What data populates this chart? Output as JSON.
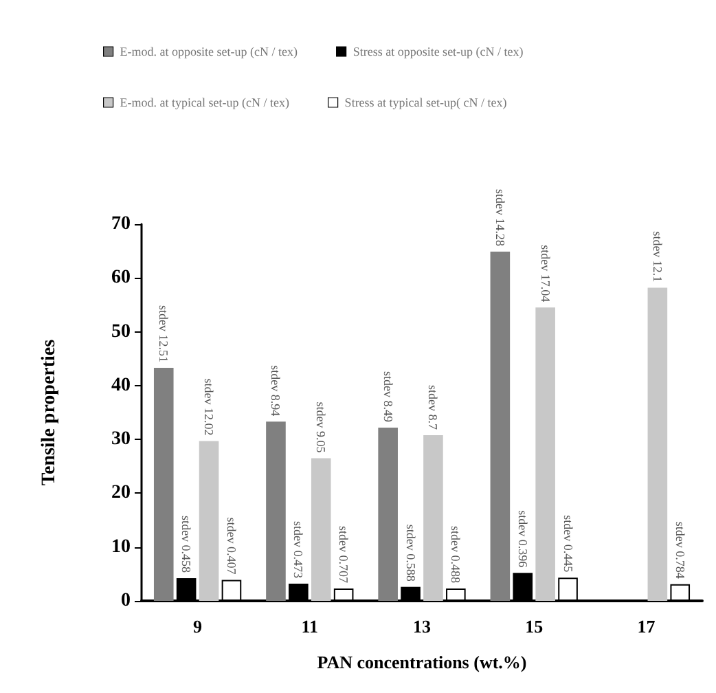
{
  "chart_data": {
    "type": "bar",
    "xlabel": "PAN concentrations (wt.%)",
    "ylabel": "Tensile properties",
    "categories": [
      "9",
      "11",
      "13",
      "15",
      "17"
    ],
    "series": [
      {
        "name": "E-mod. at opposite set-up (cN / tex)",
        "color": "#808080",
        "values": [
          43.3,
          33.3,
          32.2,
          64.9,
          null
        ],
        "value_labels": [
          "stdev 12.51",
          "stdev 8.94",
          "stdev 8.49",
          "stdev 14.28",
          null
        ]
      },
      {
        "name": "Stress at opposite set-up (cN / tex)",
        "color": "#000000",
        "values": [
          4.2,
          3.2,
          2.6,
          5.2,
          null
        ],
        "value_labels": [
          "stdev 0.458",
          "stdev 0.473",
          "stdev 0.588",
          "stdev 0.396",
          null
        ]
      },
      {
        "name": "E-mod. at typical set-up (cN / tex)",
        "color": "#c8c8c8",
        "values": [
          29.7,
          26.5,
          30.8,
          54.5,
          58.2
        ],
        "value_labels": [
          "stdev 12.02",
          "stdev 9.05",
          "stdev 8.7",
          "stdev 17.04",
          "stdev 12.1"
        ]
      },
      {
        "name": "Stress at typical set-up( cN / tex)",
        "color": "#ffffff",
        "values": [
          3.9,
          2.3,
          2.3,
          4.3,
          3.1
        ],
        "value_labels": [
          "stdev 0.407",
          "stdev 0.707",
          "stdev 0.488",
          "stdev 0.445",
          "stdev 0.784"
        ]
      }
    ],
    "ylim": [
      0,
      70
    ],
    "yticks": [
      0,
      10,
      20,
      30,
      40,
      50,
      60,
      70
    ],
    "grid": false,
    "legend": "top"
  }
}
